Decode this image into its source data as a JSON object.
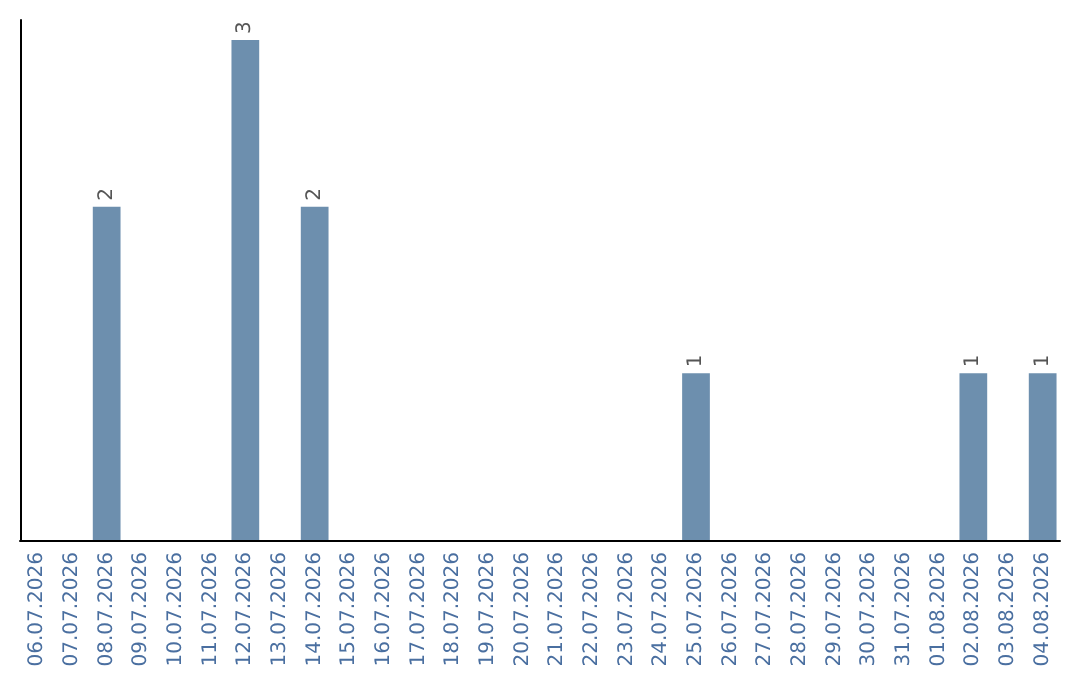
{
  "chart_data": {
    "type": "bar",
    "categories": [
      "06.07.2026",
      "07.07.2026",
      "08.07.2026",
      "09.07.2026",
      "10.07.2026",
      "11.07.2026",
      "12.07.2026",
      "13.07.2026",
      "14.07.2026",
      "15.07.2026",
      "16.07.2026",
      "17.07.2026",
      "18.07.2026",
      "19.07.2026",
      "20.07.2026",
      "21.07.2026",
      "22.07.2026",
      "23.07.2026",
      "24.07.2026",
      "25.07.2026",
      "26.07.2026",
      "27.07.2026",
      "28.07.2026",
      "29.07.2026",
      "30.07.2026",
      "31.07.2026",
      "01.08.2026",
      "02.08.2026",
      "03.08.2026",
      "04.08.2026"
    ],
    "values": [
      0,
      0,
      2,
      0,
      0,
      0,
      3,
      0,
      2,
      0,
      0,
      0,
      0,
      0,
      0,
      0,
      0,
      0,
      0,
      1,
      0,
      0,
      0,
      0,
      0,
      0,
      0,
      1,
      0,
      1
    ],
    "value_labels": [
      null,
      null,
      "2",
      null,
      null,
      null,
      "3",
      null,
      "2",
      null,
      null,
      null,
      null,
      null,
      null,
      null,
      null,
      null,
      null,
      "1",
      null,
      null,
      null,
      null,
      null,
      null,
      null,
      "1",
      null,
      "1"
    ],
    "color": "#6d8fae"
  }
}
